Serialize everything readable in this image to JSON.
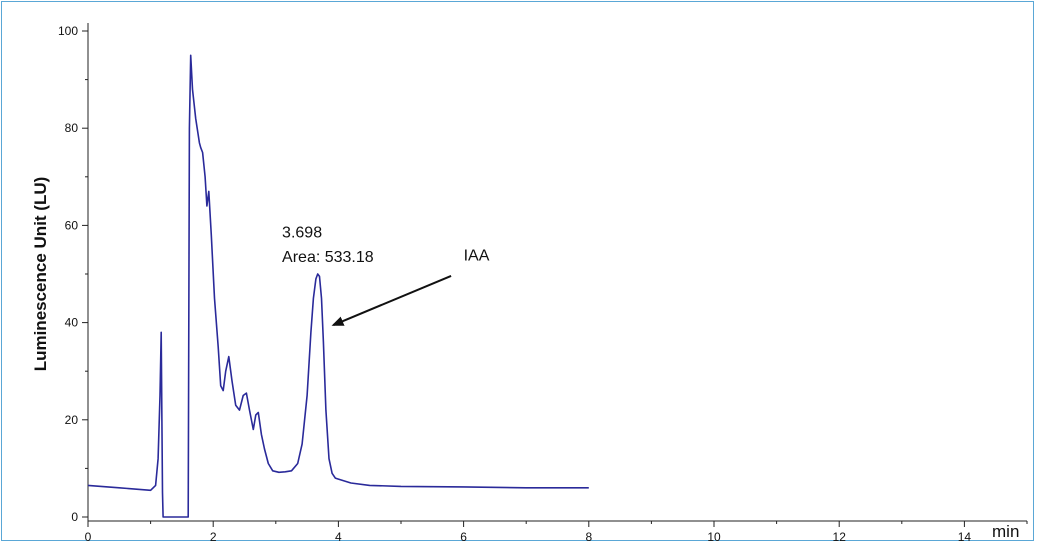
{
  "chart_data": {
    "type": "line",
    "title": "",
    "xlabel": "",
    "x_unit": "min",
    "ylabel": "Luminescence Unit (LU)",
    "xlim": [
      0,
      15
    ],
    "ylim": [
      0,
      100
    ],
    "x_ticks": [
      "0",
      "2",
      "4",
      "6",
      "8",
      "10",
      "12",
      "14"
    ],
    "y_ticks": [
      "0",
      "20",
      "40",
      "60",
      "80",
      "100"
    ],
    "grid": false,
    "series_color": "#2a2a9a",
    "series": [
      {
        "x": [
          0,
          0.5,
          1.0,
          1.08,
          1.12,
          1.15,
          1.17,
          1.18,
          1.19,
          1.2,
          1.22,
          1.6,
          1.61,
          1.62,
          1.64,
          1.67,
          1.72,
          1.78,
          1.8,
          1.83,
          1.87,
          1.9,
          1.93,
          1.97,
          2.02,
          2.08,
          2.12,
          2.16,
          2.2,
          2.25,
          2.3,
          2.36,
          2.42,
          2.48,
          2.53,
          2.58,
          2.64,
          2.68,
          2.72,
          2.77,
          2.82,
          2.88,
          2.95,
          3.05,
          3.15,
          3.25,
          3.35,
          3.42,
          3.5,
          3.56,
          3.6,
          3.64,
          3.67,
          3.698,
          3.73,
          3.76,
          3.8,
          3.85,
          3.9,
          3.95,
          4.0,
          4.2,
          4.5,
          5.0,
          6.0,
          7.0,
          8.0
        ],
        "values": [
          6.5,
          6.0,
          5.5,
          6.5,
          12,
          25,
          38,
          20,
          5,
          0,
          0,
          0,
          40,
          80,
          95,
          88,
          82,
          77,
          76,
          75,
          70,
          64,
          67,
          58,
          45,
          35,
          27,
          26,
          30,
          33,
          28,
          23,
          22,
          25,
          25.5,
          22,
          18,
          21,
          21.5,
          17,
          14,
          11,
          9.5,
          9.2,
          9.3,
          9.5,
          11,
          15,
          25,
          38,
          45,
          49,
          50,
          49.5,
          45,
          36,
          22,
          12,
          9,
          8,
          7.8,
          7.0,
          6.5,
          6.3,
          6.2,
          6.0,
          6.0
        ]
      }
    ],
    "annotations": [
      {
        "text": "3.698",
        "x": 3.1,
        "y": 57.5
      },
      {
        "text": "Area: 533.18",
        "x": 3.1,
        "y": 52.5
      },
      {
        "text": "IAA",
        "x": 6.0,
        "y": 52.8
      }
    ],
    "arrow": {
      "from": [
        5.8,
        49.6
      ],
      "to": [
        3.92,
        39.5
      ]
    }
  }
}
